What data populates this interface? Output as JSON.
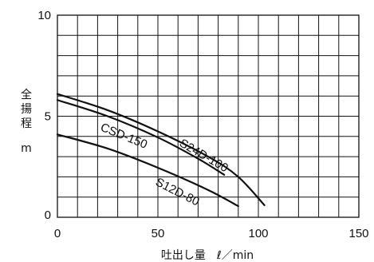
{
  "chart_data": {
    "type": "line",
    "xlabel": "吐出し量　ℓ／min",
    "ylabel": [
      "全",
      "揚",
      "程",
      "m"
    ],
    "xlim": [
      0,
      150
    ],
    "ylim": [
      0,
      10
    ],
    "x_ticks": [
      0,
      50,
      100,
      150
    ],
    "y_ticks": [
      0,
      5,
      10
    ],
    "grid": true,
    "series": [
      {
        "name": "S24D-100",
        "x": [
          0,
          25,
          50,
          75,
          90,
          103
        ],
        "y": [
          6.1,
          5.3,
          4.25,
          3.0,
          2.0,
          0.6
        ]
      },
      {
        "name": "CSD-150",
        "x": [
          0,
          25,
          50,
          70,
          83
        ],
        "y": [
          5.8,
          5.0,
          3.95,
          2.9,
          2.1
        ]
      },
      {
        "name": "S12D-80",
        "x": [
          0,
          25,
          50,
          75,
          90
        ],
        "y": [
          4.1,
          3.4,
          2.45,
          1.35,
          0.55
        ]
      }
    ]
  }
}
